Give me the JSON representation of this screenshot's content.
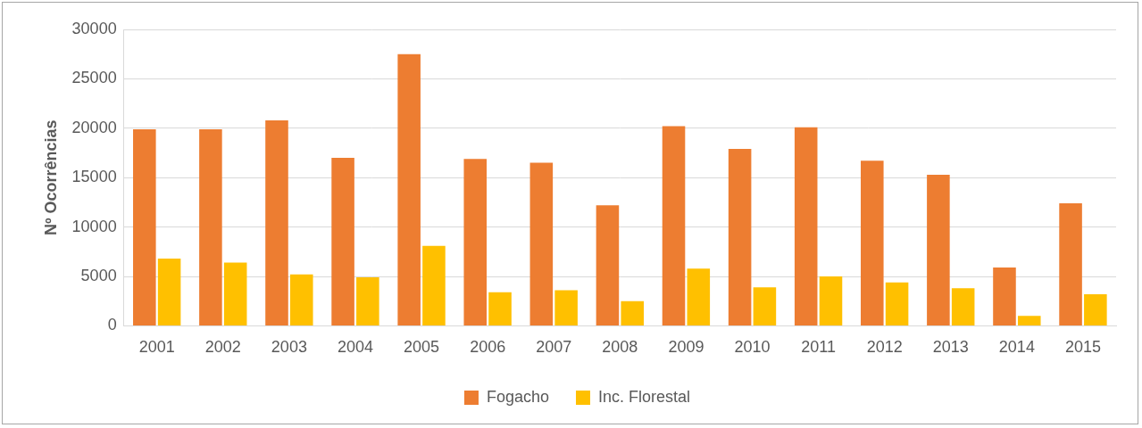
{
  "chart_data": {
    "type": "bar",
    "y_label": "Nº Ocorrências",
    "categories": [
      "2001",
      "2002",
      "2003",
      "2004",
      "2005",
      "2006",
      "2007",
      "2008",
      "2009",
      "2010",
      "2011",
      "2012",
      "2013",
      "2014",
      "2015"
    ],
    "series": [
      {
        "name": "Fogacho",
        "color": "#ed7d31",
        "values": [
          19900,
          19900,
          20800,
          17000,
          27500,
          16900,
          16500,
          12200,
          20200,
          17900,
          20100,
          16700,
          15300,
          5900,
          12400
        ]
      },
      {
        "name": "Inc. Florestal",
        "color": "#ffc000",
        "values": [
          6800,
          6400,
          5200,
          4900,
          8100,
          3400,
          3600,
          2500,
          5800,
          3900,
          5000,
          4400,
          3800,
          1000,
          3200
        ]
      }
    ],
    "ylim": [
      0,
      30000
    ],
    "yticks": [
      0,
      5000,
      10000,
      15000,
      20000,
      25000,
      30000
    ],
    "grid": true,
    "legend": "bottom"
  }
}
